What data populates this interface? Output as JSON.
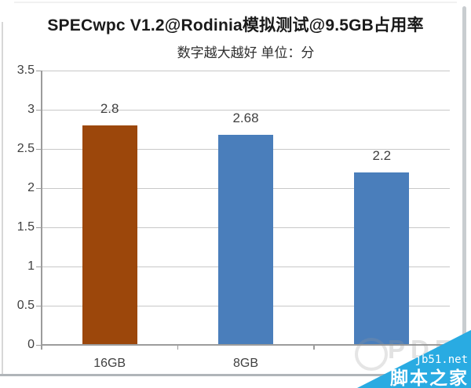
{
  "title": "SPECwpc V1.2@Rodinia模拟测试@9.5GB占用率",
  "subtitle": "数字越大越好 单位：分",
  "chart_data": {
    "type": "bar",
    "title": "SPECwpc V1.2@Rodinia模拟测试@9.5GB占用率",
    "subtitle": "数字越大越好 单位：分",
    "categories": [
      "16GB",
      "8GB",
      ""
    ],
    "values": [
      2.8,
      2.68,
      2.2
    ],
    "value_labels": [
      "2.8",
      "2.68",
      "2.2"
    ],
    "bar_colors": [
      "#9C470B",
      "#4A7EBB",
      "#4A7EBB"
    ],
    "ylim": [
      0,
      3.5
    ],
    "ytick_step": 0.5,
    "ytick_labels": [
      "3.5",
      "3",
      "2.5",
      "2",
      "1.5",
      "1",
      "0.5",
      "0"
    ],
    "grid": true,
    "legend": "none"
  },
  "colors": {
    "bar_brown": "#9C470B",
    "bar_blue": "#4A7EBB",
    "gridline": "#C8C8C8",
    "axis": "#9C9C9C",
    "text": "#404040",
    "watermark_blue": "#29ABE2"
  },
  "watermark": {
    "site": "jb51.net",
    "brand": "脚本之家",
    "ghost": "PDF"
  }
}
